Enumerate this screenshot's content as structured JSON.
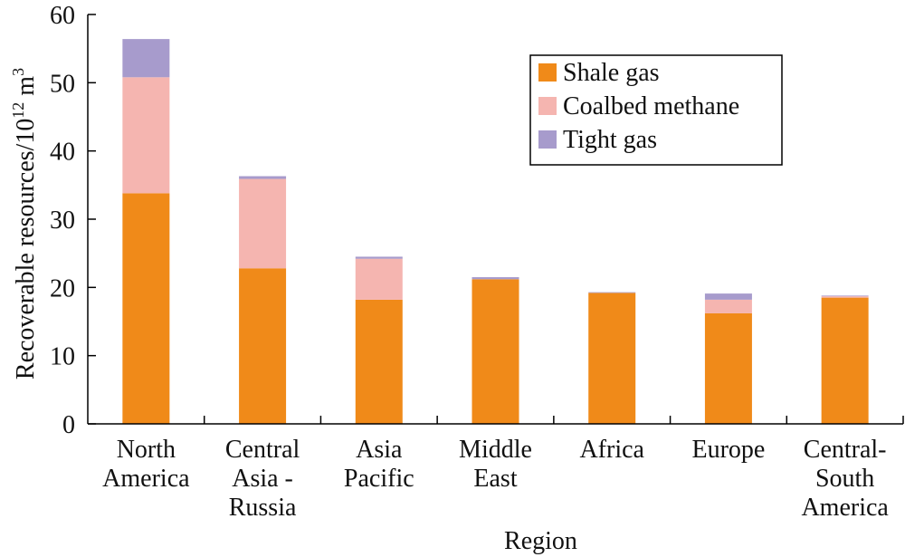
{
  "chart_data": {
    "type": "bar",
    "stacked": true,
    "categories": [
      [
        "North",
        "America"
      ],
      [
        "Central",
        "Asia -",
        "Russia"
      ],
      [
        "Asia",
        "Pacific"
      ],
      [
        "Middle",
        "East"
      ],
      [
        "Africa"
      ],
      [
        "Europe"
      ],
      [
        "Central-",
        "South",
        "America"
      ]
    ],
    "series": [
      {
        "name": "Shale gas",
        "color": "#f08a19",
        "values": [
          33.8,
          22.8,
          18.2,
          21.2,
          19.2,
          16.2,
          18.5
        ]
      },
      {
        "name": "Coalbed methane",
        "color": "#f5b5b0",
        "values": [
          17.0,
          13.1,
          6.0,
          0.0,
          0.0,
          2.0,
          0.2
        ]
      },
      {
        "name": "Tight gas",
        "color": "#a79bcc",
        "values": [
          5.6,
          0.4,
          0.3,
          0.3,
          0.1,
          0.9,
          0.1
        ]
      }
    ],
    "ylabel_main": "Recoverable resources/10",
    "ylabel_exp": "12",
    "ylabel_unit": " m",
    "ylabel_unit_exp": "3",
    "xlabel": "Region",
    "ylim": [
      0,
      60
    ],
    "yticks": [
      0,
      10,
      20,
      30,
      40,
      50,
      60
    ],
    "legend_position": "top-right",
    "grid": false
  }
}
